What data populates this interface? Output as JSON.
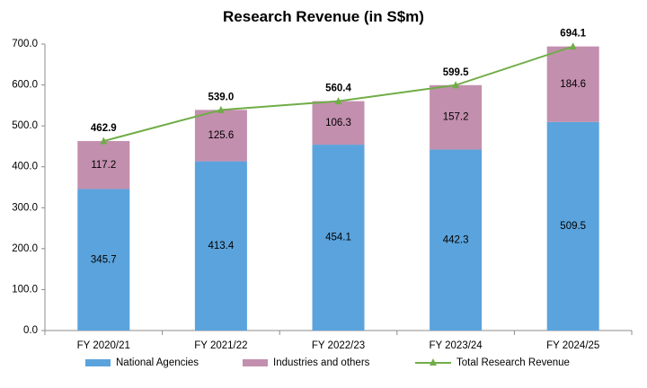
{
  "chart_data": {
    "type": "bar",
    "stacked": true,
    "title": "Research Revenue (in S$m)",
    "categories": [
      "FY 2020/21",
      "FY 2021/22",
      "FY 2022/23",
      "FY 2023/24",
      "FY 2024/25"
    ],
    "series": [
      {
        "name": "National Agencies",
        "values": [
          345.7,
          413.4,
          454.1,
          442.3,
          509.5
        ],
        "color": "#5BA3DC"
      },
      {
        "name": "Industries and others",
        "values": [
          117.2,
          125.6,
          106.3,
          157.2,
          184.6
        ],
        "color": "#C38FAE"
      }
    ],
    "line_series": {
      "name": "Total Research Revenue",
      "values": [
        462.9,
        539.0,
        560.4,
        599.5,
        694.1
      ],
      "color": "#70AD47",
      "marker": "triangle"
    },
    "ylim": [
      0,
      700
    ],
    "yticks": [
      "0.0",
      "100.0",
      "200.0",
      "300.0",
      "400.0",
      "500.0",
      "600.0",
      "700.0"
    ],
    "xlabel": "",
    "ylabel": "",
    "grid": false,
    "legend": "bottom"
  }
}
